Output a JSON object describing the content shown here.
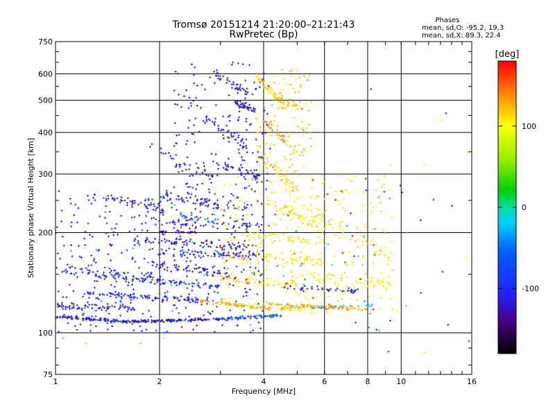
{
  "chart_data": {
    "type": "scatter",
    "title": "Tromsø 20151214 21:20:00–21:21:43",
    "subtitle": "RwPretec (Bp)",
    "xlabel": "Frequency [MHz]",
    "ylabel": "Stationary phase Virtual Height [km]",
    "x_scale": "log",
    "y_scale": "log",
    "xlim": [
      1,
      16
    ],
    "ylim": [
      75,
      750
    ],
    "x_ticks": [
      1,
      2,
      4,
      6,
      8,
      10,
      16
    ],
    "x_tick_labels": [
      "1",
      "2",
      "4",
      "6",
      "8",
      "10",
      "16"
    ],
    "y_ticks": [
      75,
      100,
      200,
      300,
      400,
      500,
      600,
      750
    ],
    "y_tick_labels": [
      "75",
      "100",
      "200",
      "300",
      "400",
      "500",
      "600",
      "750"
    ],
    "grid": true,
    "stats": {
      "heading": "Phases",
      "line_o": "mean, sd,O: -95.2, 19.3",
      "line_x": "mean, sd,X: 89.3, 22.4"
    },
    "colorbar": {
      "label": "[deg]",
      "range": [
        -180,
        180
      ],
      "ticks": [
        100,
        0,
        -100
      ],
      "tick_labels": [
        "100",
        "0",
        "-100"
      ]
    },
    "traces": [
      {
        "f": [
          1.0,
          1.6
        ],
        "h": [
          112,
          108
        ],
        "phase": -110,
        "n": 90,
        "spread": 0.015
      },
      {
        "f": [
          1.6,
          3.0
        ],
        "h": [
          108,
          110
        ],
        "phase": -115,
        "n": 120,
        "spread": 0.012
      },
      {
        "f": [
          3.0,
          4.5
        ],
        "h": [
          110,
          113
        ],
        "phase": -60,
        "n": 70,
        "spread": 0.015
      },
      {
        "f": [
          4.5,
          6.3
        ],
        "h": [
          118,
          120
        ],
        "phase": 120,
        "n": 60,
        "spread": 0.02
      },
      {
        "f": [
          1.0,
          1.7
        ],
        "h": [
          120,
          118
        ],
        "phase": -110,
        "n": 60,
        "spread": 0.03
      },
      {
        "f": [
          1.2,
          2.6
        ],
        "h": [
          132,
          125
        ],
        "phase": -105,
        "n": 90,
        "spread": 0.03
      },
      {
        "f": [
          1.3,
          3.0
        ],
        "h": [
          148,
          138
        ],
        "phase": -100,
        "n": 90,
        "spread": 0.03
      },
      {
        "f": [
          1.05,
          1.9
        ],
        "h": [
          155,
          148
        ],
        "phase": -95,
        "n": 45,
        "spread": 0.04
      },
      {
        "f": [
          2.6,
          4.2
        ],
        "h": [
          125,
          118
        ],
        "phase": 130,
        "n": 70,
        "spread": 0.02
      },
      {
        "f": [
          4.0,
          8.0
        ],
        "h": [
          122,
          118
        ],
        "phase": 130,
        "n": 80,
        "spread": 0.02
      },
      {
        "f": [
          5.5,
          8.5
        ],
        "h": [
          119,
          121
        ],
        "phase": -20,
        "n": 25,
        "spread": 0.01
      },
      {
        "f": [
          4.5,
          7.5
        ],
        "h": [
          138,
          133
        ],
        "phase": -110,
        "n": 45,
        "spread": 0.03
      },
      {
        "f": [
          3.0,
          5.0
        ],
        "h": [
          145,
          140
        ],
        "phase": 110,
        "n": 55,
        "spread": 0.04
      },
      {
        "f": [
          5.0,
          9.5
        ],
        "h": [
          148,
          140
        ],
        "phase": 100,
        "n": 50,
        "spread": 0.05
      },
      {
        "f": [
          1.9,
          3.2
        ],
        "h": [
          160,
          150
        ],
        "phase": -115,
        "n": 55,
        "spread": 0.04
      },
      {
        "f": [
          2.0,
          4.0
        ],
        "h": [
          175,
          170
        ],
        "phase": -110,
        "n": 65,
        "spread": 0.04
      },
      {
        "f": [
          3.2,
          6.0
        ],
        "h": [
          170,
          162
        ],
        "phase": 110,
        "n": 60,
        "spread": 0.05
      },
      {
        "f": [
          1.7,
          3.6
        ],
        "h": [
          190,
          182
        ],
        "phase": -120,
        "n": 60,
        "spread": 0.04
      },
      {
        "f": [
          3.5,
          6.0
        ],
        "h": [
          195,
          188
        ],
        "phase": 105,
        "n": 45,
        "spread": 0.05
      },
      {
        "f": [
          1.8,
          2.6
        ],
        "h": [
          202,
          200
        ],
        "phase": -150,
        "n": 25,
        "spread": 0.015
      },
      {
        "f": [
          2.0,
          4.0
        ],
        "h": [
          215,
          210
        ],
        "phase": -115,
        "n": 50,
        "spread": 0.05
      },
      {
        "f": [
          1.4,
          2.1
        ],
        "h": [
          258,
          235
        ],
        "phase": -110,
        "n": 40,
        "spread": 0.05
      },
      {
        "f": [
          2.0,
          3.6
        ],
        "h": [
          260,
          235
        ],
        "phase": -110,
        "n": 55,
        "spread": 0.06
      },
      {
        "f": [
          2.3,
          3.2
        ],
        "h": [
          225,
          215
        ],
        "phase": -40,
        "n": 25,
        "spread": 0.03
      },
      {
        "f": [
          3.0,
          4.0
        ],
        "h": [
          320,
          290
        ],
        "phase": -115,
        "n": 40,
        "spread": 0.06
      },
      {
        "f": [
          2.2,
          3.0
        ],
        "h": [
          320,
          290
        ],
        "phase": -120,
        "n": 25,
        "spread": 0.06
      },
      {
        "f": [
          1.8,
          2.4
        ],
        "h": [
          380,
          320
        ],
        "phase": -110,
        "n": 12,
        "spread": 0.06
      },
      {
        "f": [
          2.7,
          3.6
        ],
        "h": [
          440,
          360
        ],
        "phase": -110,
        "n": 35,
        "spread": 0.07
      },
      {
        "f": [
          3.3,
          3.8
        ],
        "h": [
          490,
          470
        ],
        "phase": -120,
        "n": 35,
        "spread": 0.03
      },
      {
        "f": [
          2.9,
          3.6
        ],
        "h": [
          600,
          520
        ],
        "phase": -110,
        "n": 35,
        "spread": 0.05
      },
      {
        "f": [
          3.8,
          4.6
        ],
        "h": [
          600,
          480
        ],
        "phase": 110,
        "n": 50,
        "spread": 0.05
      },
      {
        "f": [
          4.3,
          5.2
        ],
        "h": [
          520,
          470
        ],
        "phase": 120,
        "n": 30,
        "spread": 0.04
      },
      {
        "f": [
          4.0,
          4.6
        ],
        "h": [
          440,
          380
        ],
        "phase": 140,
        "n": 25,
        "spread": 0.05
      },
      {
        "f": [
          3.9,
          5.0
        ],
        "h": [
          340,
          270
        ],
        "phase": 120,
        "n": 45,
        "spread": 0.06
      },
      {
        "f": [
          4.0,
          5.8
        ],
        "h": [
          250,
          210
        ],
        "phase": 110,
        "n": 55,
        "spread": 0.06
      },
      {
        "f": [
          5.5,
          9.0
        ],
        "h": [
          230,
          170
        ],
        "phase": 110,
        "n": 35,
        "spread": 0.07
      }
    ],
    "scatter_regions": [
      {
        "f": [
          1.0,
          4.0
        ],
        "h": [
          100,
          270
        ],
        "phase": -105,
        "n": 420
      },
      {
        "f": [
          2.2,
          4.2
        ],
        "h": [
          270,
          650
        ],
        "phase": -110,
        "n": 160
      },
      {
        "f": [
          3.0,
          9.5
        ],
        "h": [
          115,
          300
        ],
        "phase": 100,
        "n": 320
      },
      {
        "f": [
          3.8,
          5.5
        ],
        "h": [
          300,
          620
        ],
        "phase": 115,
        "n": 110
      },
      {
        "f": [
          1.0,
          9.5
        ],
        "h": [
          100,
          260
        ],
        "phase": -20,
        "n": 45
      },
      {
        "f": [
          2.5,
          9.0
        ],
        "h": [
          110,
          300
        ],
        "phase": 180,
        "n": 30
      },
      {
        "f": [
          6.0,
          16.0
        ],
        "h": [
          85,
          600
        ],
        "phase": -100,
        "n": 18
      },
      {
        "f": [
          6.0,
          16.0
        ],
        "h": [
          85,
          600
        ],
        "phase": 110,
        "n": 10
      },
      {
        "f": [
          1.0,
          3.0
        ],
        "h": [
          85,
          100
        ],
        "phase": 60,
        "n": 4
      }
    ],
    "seed": 20151214
  }
}
